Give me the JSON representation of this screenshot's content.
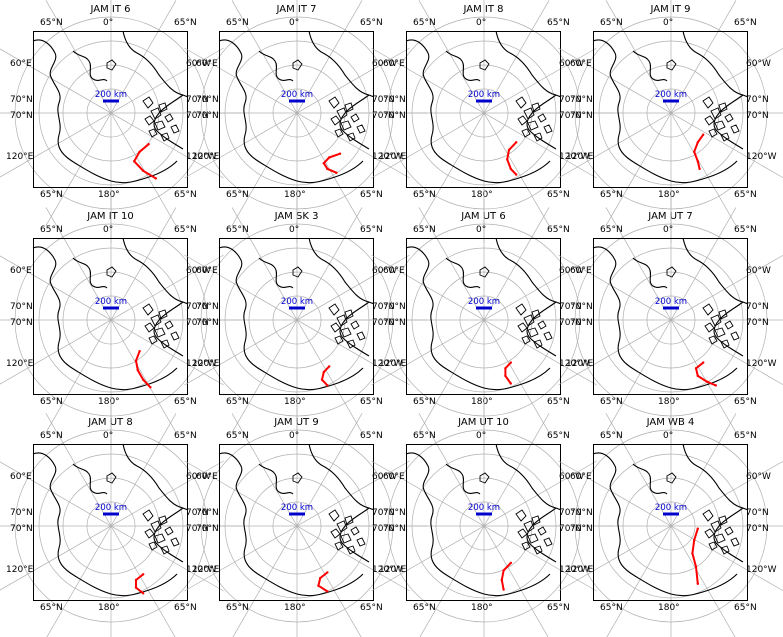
{
  "chart_data": [
    {
      "type": "map",
      "title": "JAM IT 6",
      "scale_label": "200 km",
      "track_color": "#ff0000",
      "scale_color": "#0000cc",
      "track": [
        [
          1.2,
          4.8
        ],
        [
          0.7,
          5.2
        ],
        [
          0.4,
          5.7
        ],
        [
          0.9,
          6.2
        ],
        [
          1.6,
          6.6
        ]
      ]
    },
    {
      "type": "map",
      "title": "JAM IT 7",
      "scale_label": "200 km",
      "track_color": "#ff0000",
      "scale_color": "#0000cc",
      "track": [
        [
          1.5,
          5.3
        ],
        [
          0.9,
          5.5
        ],
        [
          0.6,
          5.8
        ],
        [
          0.8,
          6.1
        ],
        [
          1.3,
          6.3
        ]
      ]
    },
    {
      "type": "map",
      "title": "JAM IT 8",
      "scale_label": "200 km",
      "track_color": "#ff0000",
      "scale_color": "#0000cc",
      "track": [
        [
          0.9,
          4.7
        ],
        [
          0.5,
          5.1
        ],
        [
          0.4,
          5.6
        ],
        [
          0.6,
          6.1
        ],
        [
          0.9,
          6.4
        ]
      ]
    },
    {
      "type": "map",
      "title": "JAM IT 9",
      "scale_label": "200 km",
      "track_color": "#ff0000",
      "scale_color": "#0000cc",
      "track": [
        [
          0.9,
          4.3
        ],
        [
          0.6,
          4.7
        ],
        [
          0.4,
          5.2
        ],
        [
          0.6,
          5.7
        ],
        [
          0.7,
          6.1
        ]
      ]
    },
    {
      "type": "map",
      "title": "JAM IT 10",
      "scale_label": "200 km",
      "track_color": "#ff0000",
      "scale_color": "#0000cc",
      "track": [
        [
          0.7,
          4.8
        ],
        [
          0.5,
          5.3
        ],
        [
          0.6,
          5.8
        ],
        [
          0.9,
          6.3
        ],
        [
          1.3,
          6.7
        ]
      ]
    },
    {
      "type": "map",
      "title": "JAM SK 3",
      "scale_label": "200 km",
      "track_color": "#ff0000",
      "scale_color": "#0000cc",
      "track": [
        [
          0.9,
          5.6
        ],
        [
          0.6,
          5.9
        ],
        [
          0.5,
          6.3
        ],
        [
          0.8,
          6.6
        ]
      ]
    },
    {
      "type": "map",
      "title": "JAM UT 6",
      "scale_label": "200 km",
      "track_color": "#ff0000",
      "scale_color": "#0000cc",
      "track": [
        [
          0.6,
          5.4
        ],
        [
          0.3,
          5.7
        ],
        [
          0.3,
          6.1
        ],
        [
          0.6,
          6.5
        ]
      ]
    },
    {
      "type": "map",
      "title": "JAM UT 7",
      "scale_label": "200 km",
      "track_color": "#ff0000",
      "scale_color": "#0000cc",
      "track": [
        [
          0.9,
          5.4
        ],
        [
          0.5,
          5.7
        ],
        [
          0.6,
          6.1
        ],
        [
          1.1,
          6.4
        ],
        [
          1.6,
          6.6
        ]
      ]
    },
    {
      "type": "map",
      "title": "JAM UT 8",
      "scale_label": "200 km",
      "track_color": "#ff0000",
      "scale_color": "#0000cc",
      "track": [
        [
          0.9,
          5.7
        ],
        [
          0.5,
          6.0
        ],
        [
          0.5,
          6.4
        ],
        [
          0.9,
          6.7
        ]
      ]
    },
    {
      "type": "map",
      "title": "JAM UT 9",
      "scale_label": "200 km",
      "track_color": "#ff0000",
      "scale_color": "#0000cc",
      "track": [
        [
          0.8,
          5.6
        ],
        [
          0.4,
          5.9
        ],
        [
          0.3,
          6.3
        ],
        [
          0.8,
          6.6
        ]
      ]
    },
    {
      "type": "map",
      "title": "JAM UT 10",
      "scale_label": "200 km",
      "track_color": "#ff0000",
      "scale_color": "#0000cc",
      "track": [
        [
          0.6,
          5.1
        ],
        [
          0.2,
          5.5
        ],
        [
          0.1,
          6.0
        ],
        [
          0.2,
          6.5
        ]
      ]
    },
    {
      "type": "map",
      "title": "JAM WB 4",
      "scale_label": "200 km",
      "track_color": "#ff0000",
      "scale_color": "#0000cc",
      "track": [
        [
          0.6,
          3.3
        ],
        [
          0.4,
          3.9
        ],
        [
          0.3,
          4.6
        ],
        [
          0.5,
          5.3
        ],
        [
          0.6,
          6.2
        ]
      ]
    }
  ],
  "tick_labels": {
    "top_left": "65°N",
    "top_center": "0°",
    "top_right": "65°N",
    "bottom_left": "65°N",
    "bottom_center": "180°",
    "bottom_right": "65°N",
    "left_upper": "60°E",
    "left_mid1": "70°N",
    "left_mid2": "70°N",
    "left_lower": "120°E",
    "right_upper": "60°W",
    "right_mid1": "70°N",
    "right_mid2": "70°N",
    "right_lower": "120°W"
  }
}
